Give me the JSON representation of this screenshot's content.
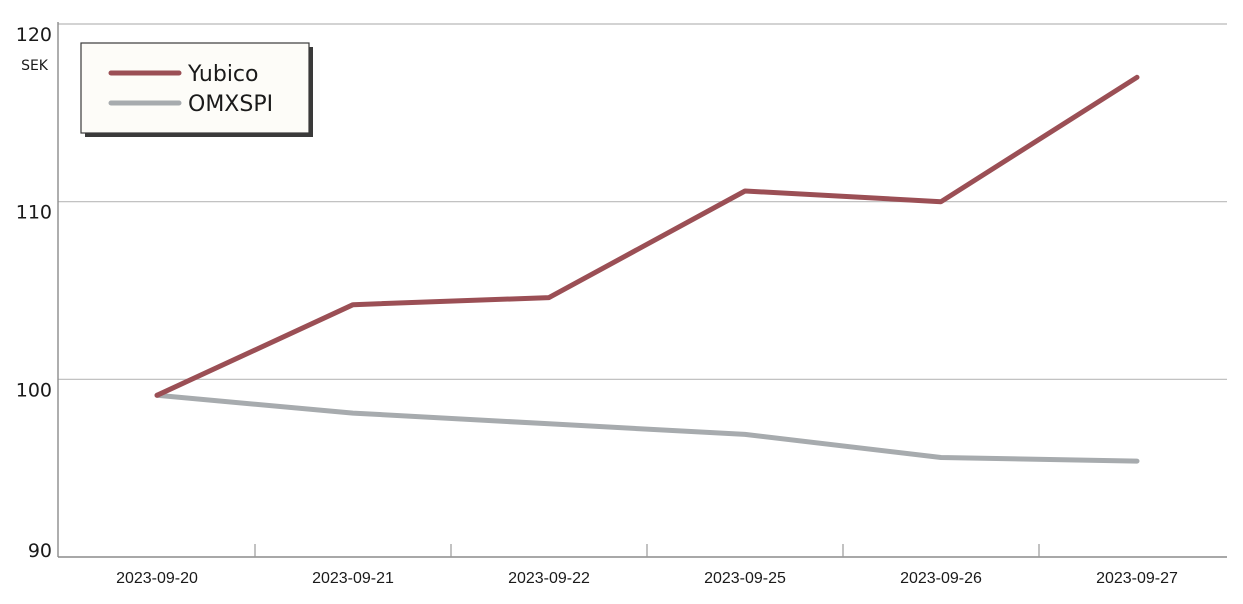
{
  "chart_data": {
    "type": "line",
    "title": "",
    "xlabel": "",
    "ylabel": "SEK",
    "ylim": [
      90,
      120
    ],
    "yticks": [
      90,
      100,
      110,
      120
    ],
    "grid": "horizontal",
    "legend_position": "top-left",
    "categories": [
      "2023-09-20",
      "2023-09-21",
      "2023-09-22",
      "2023-09-25",
      "2023-09-26",
      "2023-09-27"
    ],
    "series": [
      {
        "name": "Yubico",
        "color": "#9b4f55",
        "values": [
          99.1,
          104.2,
          104.6,
          110.6,
          110.0,
          117.0
        ]
      },
      {
        "name": "OMXSPI",
        "color": "#a7abae",
        "values": [
          99.1,
          98.1,
          97.5,
          96.9,
          95.6,
          95.4
        ]
      }
    ]
  }
}
